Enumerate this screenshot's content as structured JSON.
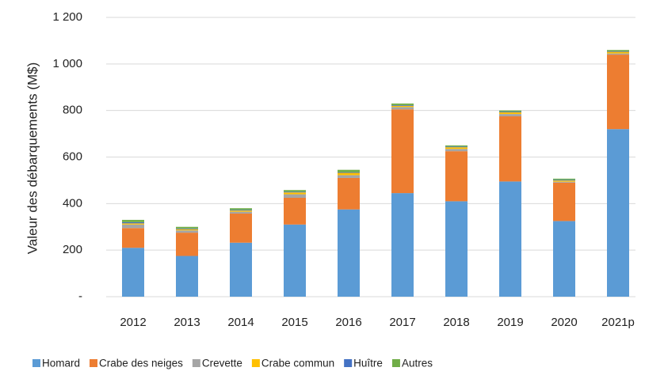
{
  "chart_data": {
    "type": "stacked_bar",
    "y_label": "Valeur des débarquements (M$)",
    "categories": [
      "2012",
      "2013",
      "2014",
      "2015",
      "2016",
      "2017",
      "2018",
      "2019",
      "2020",
      "2021p"
    ],
    "series": [
      {
        "name": "Homard",
        "color": "#5b9bd5",
        "values": [
          210,
          175,
          232,
          310,
          375,
          445,
          410,
          495,
          325,
          720
        ]
      },
      {
        "name": "Crabe des neiges",
        "color": "#ed7d31",
        "values": [
          85,
          100,
          125,
          115,
          135,
          360,
          215,
          280,
          165,
          320
        ]
      },
      {
        "name": "Crevette",
        "color": "#a5a5a5",
        "values": [
          15,
          10,
          8,
          15,
          12,
          10,
          10,
          10,
          4,
          5
        ]
      },
      {
        "name": "Crabe commun",
        "color": "#ffc000",
        "values": [
          5,
          5,
          5,
          8,
          10,
          5,
          7,
          7,
          5,
          7
        ]
      },
      {
        "name": "Huître",
        "color": "#4472c4",
        "values": [
          5,
          3,
          3,
          3,
          3,
          3,
          3,
          3,
          3,
          3
        ]
      },
      {
        "name": "Autres",
        "color": "#70ad47",
        "values": [
          10,
          7,
          7,
          7,
          10,
          7,
          5,
          5,
          5,
          5
        ]
      }
    ],
    "ylim": [
      0,
      1200
    ],
    "yticks": [
      {
        "value": 0,
        "label": "-"
      },
      200,
      400,
      600,
      800,
      {
        "value": 1000,
        "label": "1 000"
      },
      {
        "value": 1200,
        "label": "1 200"
      }
    ],
    "grid": true,
    "legend": "bottom"
  }
}
